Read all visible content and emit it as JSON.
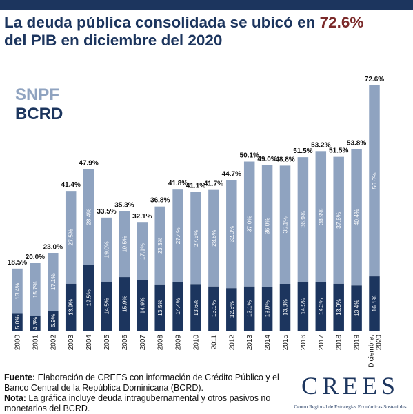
{
  "title_part1": "La deuda pública consolidada se ubicó en ",
  "title_highlight": "72.6%",
  "title_part2": "del PIB en diciembre del 2020",
  "chart_data": {
    "type": "bar",
    "stacked": true,
    "categories": [
      "2000",
      "2001",
      "2002",
      "2003",
      "2004",
      "2005",
      "2006",
      "2007",
      "2008",
      "2009",
      "2010",
      "2011",
      "2012",
      "2013",
      "2014",
      "2015",
      "2016",
      "2017",
      "2018",
      "2019",
      "Diciembre, 2020"
    ],
    "series": [
      {
        "name": "BCRD",
        "color": "#1c355e",
        "values": [
          5.0,
          4.3,
          5.9,
          13.9,
          19.5,
          14.5,
          15.9,
          14.9,
          13.5,
          14.4,
          13.6,
          13.1,
          12.6,
          13.1,
          13.0,
          13.8,
          14.5,
          14.3,
          13.9,
          13.4,
          16.1
        ],
        "labels": [
          "5.0%",
          "4.3%",
          "5.9%",
          "13.9%",
          "19.5%",
          "14.5%",
          "15.9%",
          "14.9%",
          "13.5%",
          "14.4%",
          "13.6%",
          "13.1%",
          "12.6%",
          "13.1%",
          "13.0%",
          "13.8%",
          "14.5%",
          "14.3%",
          "13.9%",
          "13.4%",
          "16.1%"
        ]
      },
      {
        "name": "SNPF",
        "color": "#8fa3c0",
        "values": [
          13.4,
          15.7,
          17.1,
          27.5,
          28.4,
          19.0,
          19.5,
          17.1,
          23.3,
          27.4,
          27.5,
          28.6,
          32.0,
          37.0,
          36.0,
          35.1,
          36.9,
          38.9,
          37.6,
          40.4,
          56.6
        ],
        "labels": [
          "13.4%",
          "15.7%",
          "17.1%",
          "27.5%",
          "28.4%",
          "19.0%",
          "19.5%",
          "17.1%",
          "23.3%",
          "27.4%",
          "27.5%",
          "28.6%",
          "32.0%",
          "37.0%",
          "36.0%",
          "35.1%",
          "36.9%",
          "38.9%",
          "37.6%",
          "40.4%",
          "56.6%"
        ]
      }
    ],
    "totals": [
      18.5,
      20.0,
      23.0,
      41.4,
      47.9,
      33.5,
      35.3,
      32.1,
      36.8,
      41.8,
      41.1,
      41.7,
      44.7,
      50.1,
      49.0,
      48.8,
      51.5,
      53.2,
      51.5,
      53.8,
      72.6
    ],
    "total_labels": [
      "18.5%",
      "20.0%",
      "23.0%",
      "41.4%",
      "47.9%",
      "33.5%",
      "35.3%",
      "32.1%",
      "36.8%",
      "41.8%",
      "41.1%",
      "41.7%",
      "44.7%",
      "50.1%",
      "49.0%",
      "48.8%",
      "51.5%",
      "53.2%",
      "51.5%",
      "53.8%",
      "72.6%"
    ],
    "legend": [
      {
        "name": "SNPF",
        "color": "#8fa3c0"
      },
      {
        "name": "BCRD",
        "color": "#1c355e"
      }
    ],
    "legend_position": "top-left",
    "grid": false,
    "ylim": [
      0,
      75
    ]
  },
  "footer": {
    "source_label": "Fuente:",
    "source_text": " Elaboración de CREES con información de Crédito Público y el Banco Central de la República Dominicana (BCRD).",
    "note_label": "Nota:",
    "note_text": " La gráfica incluye deuda intragubernamental y otros pasivos no monetarios del BCRD."
  },
  "logo": {
    "word": "CREES",
    "subtitle": "Centro Regional de Estrategias Económicas Sostenibles"
  }
}
